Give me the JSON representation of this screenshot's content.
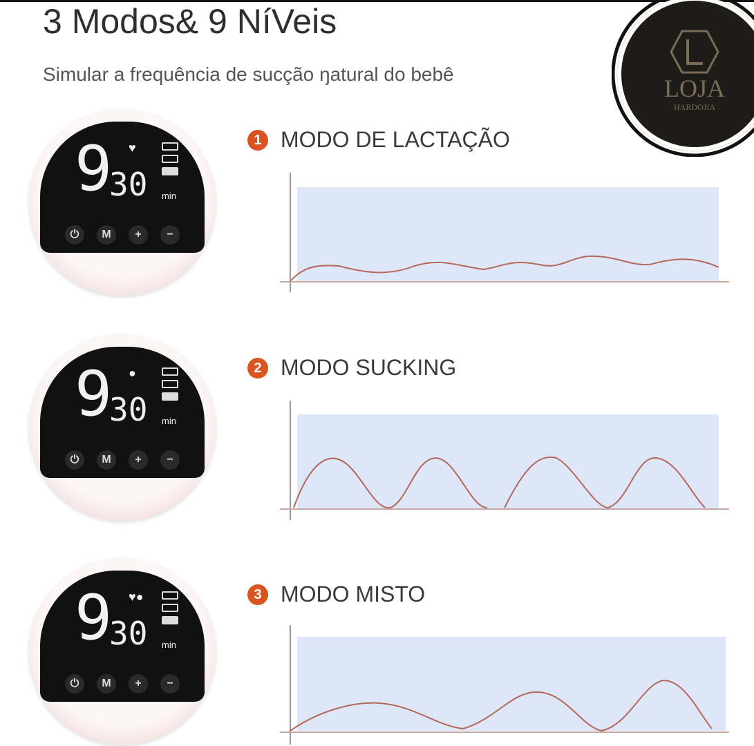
{
  "header": {
    "title": "3 Modos& 9 NíVeis",
    "subtitle": "Simular a frequência de sucção ŋatural do bebê"
  },
  "logo": {
    "text": "LOJA",
    "subtext": "HARDOJIA",
    "background": "#1e1c18",
    "color": "#7a6d58"
  },
  "display": {
    "level": "9",
    "time": "30",
    "unit": "min",
    "buttons": [
      "power",
      "M",
      "+",
      "−"
    ]
  },
  "modes": [
    {
      "number": "1",
      "label": "MODO DE LACTAÇÃO",
      "indicators": "♥"
    },
    {
      "number": "2",
      "label": "MODO SUCKING",
      "indicators": "💧"
    },
    {
      "number": "3",
      "label": "MODO MISTO",
      "indicators": "♥💧"
    }
  ],
  "colors": {
    "accent": "#d9541e",
    "chart_bg": "#dde7f7",
    "wave": "#b5685a"
  }
}
